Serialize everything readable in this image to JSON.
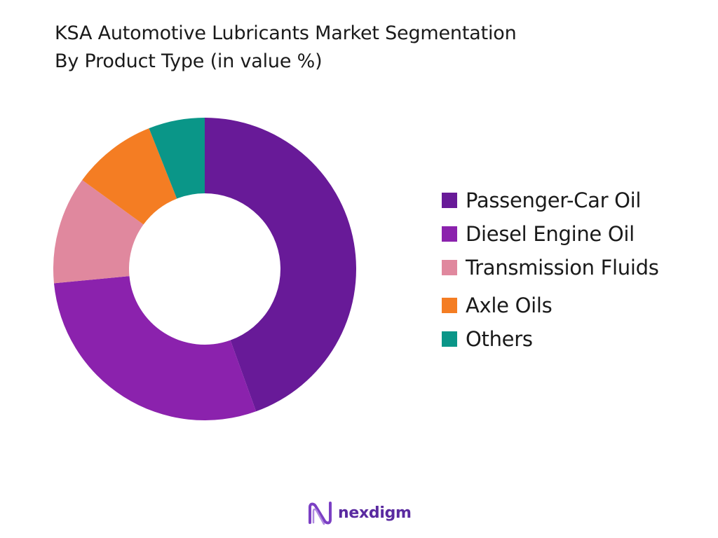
{
  "chart_data": {
    "type": "pie",
    "donut": true,
    "title": "KSA Automotive Lubricants Market Segmentation",
    "subtitle": "By Product Type (in value %)",
    "categories": [
      "Passenger-Car Oil",
      "Diesel Engine Oil",
      "Transmission Fluids",
      "Axle Oils",
      "Others"
    ],
    "values": [
      44.5,
      29.0,
      11.5,
      9.0,
      6.0
    ],
    "colors": [
      "#681a98",
      "#8b22ad",
      "#e0889e",
      "#f47d23",
      "#0a9688"
    ],
    "legend_position": "right"
  },
  "brand": {
    "logo_text": "nexdigm"
  }
}
